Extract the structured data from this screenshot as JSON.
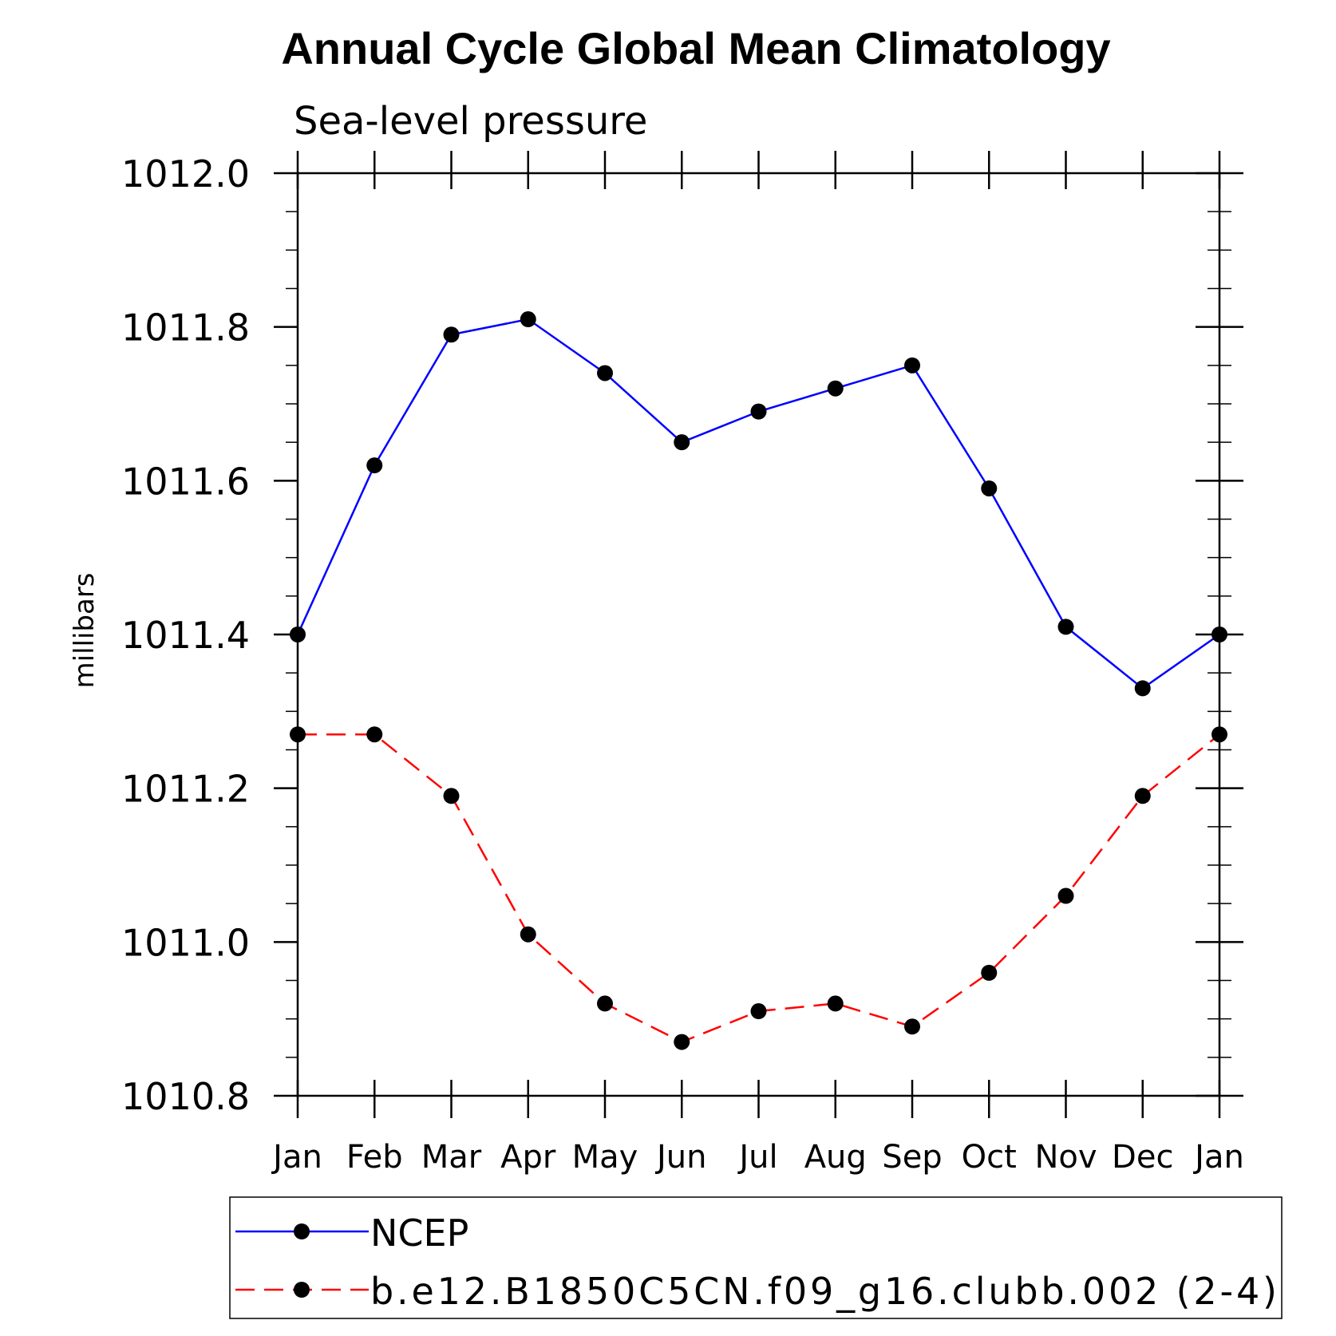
{
  "chart_data": {
    "type": "line",
    "title": "Annual Cycle Global Mean Climatology",
    "subtitle": "Sea-level pressure",
    "ylabel": "millibars",
    "xlabel": "",
    "categories": [
      "Jan",
      "Feb",
      "Mar",
      "Apr",
      "May",
      "Jun",
      "Jul",
      "Aug",
      "Sep",
      "Oct",
      "Nov",
      "Dec",
      "Jan"
    ],
    "ylim": [
      1010.8,
      1012.0
    ],
    "yticks": [
      "1010.8",
      "1011.0",
      "1011.2",
      "1011.4",
      "1011.6",
      "1011.8",
      "1012.0"
    ],
    "ytick_values": [
      1010.8,
      1011.0,
      1011.2,
      1011.4,
      1011.6,
      1011.8,
      1012.0
    ],
    "series": [
      {
        "name": "NCEP",
        "color": "#0000ff",
        "dash": "solid",
        "values": [
          1011.4,
          1011.62,
          1011.79,
          1011.81,
          1011.74,
          1011.65,
          1011.69,
          1011.72,
          1011.75,
          1011.59,
          1011.41,
          1011.33,
          1011.4
        ]
      },
      {
        "name": "b.e12.B1850C5CN.f09_g16.clubb.002 (2-4)",
        "color": "#ff0000",
        "dash": "dashed",
        "values": [
          1011.27,
          1011.27,
          1011.19,
          1011.01,
          1010.92,
          1010.87,
          1010.91,
          1010.92,
          1010.89,
          1010.96,
          1011.06,
          1011.19,
          1011.27
        ]
      }
    ],
    "legend": "bottom",
    "grid": false
  }
}
